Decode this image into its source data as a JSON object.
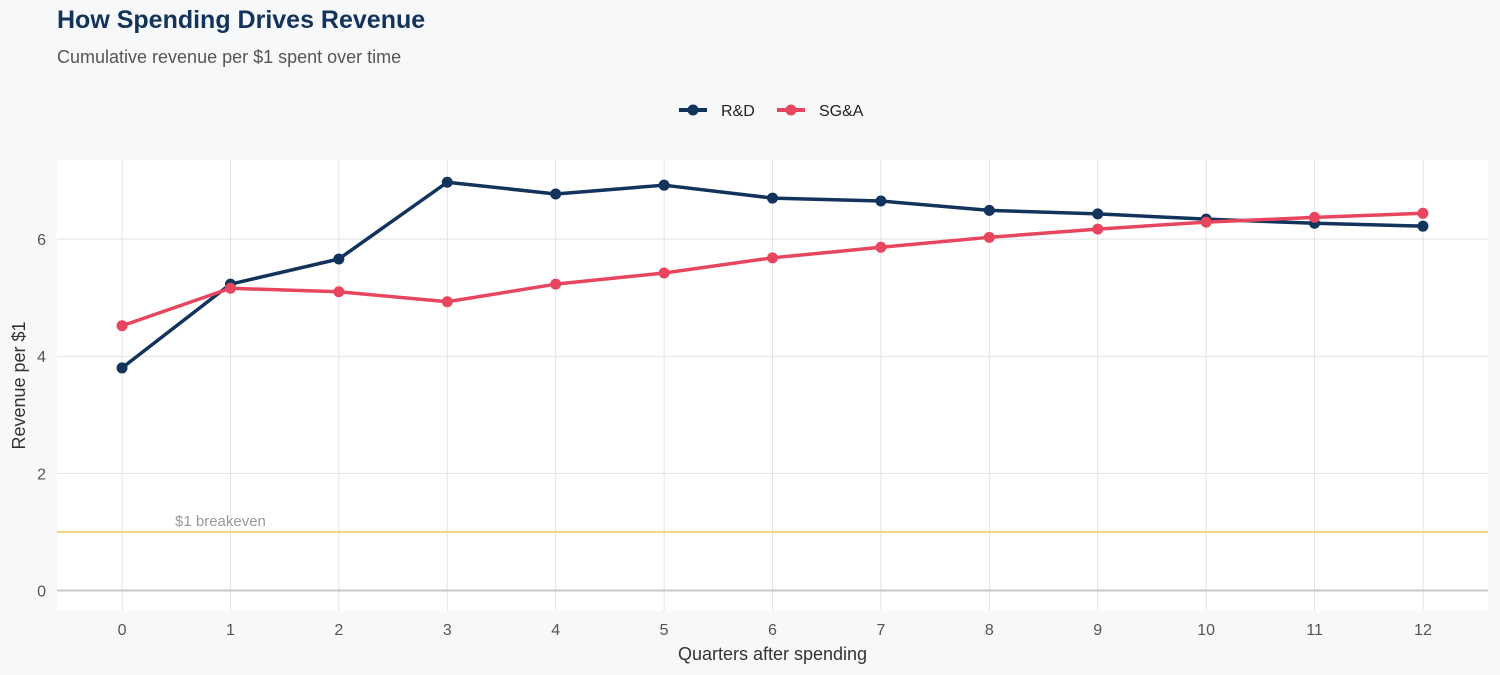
{
  "title": "How Spending Drives Revenue",
  "subtitle": "Cumulative revenue per $1 spent over time",
  "chart_data": {
    "type": "line",
    "title": "How Spending Drives Revenue",
    "subtitle": "Cumulative revenue per $1 spent over time",
    "xlabel": "Quarters after spending",
    "ylabel": "Revenue per $1",
    "x": [
      0,
      1,
      2,
      3,
      4,
      5,
      6,
      7,
      8,
      9,
      10,
      11,
      12
    ],
    "xlim": [
      -0.6,
      12.6
    ],
    "ylim": [
      -0.35,
      7.35
    ],
    "yticks": [
      0,
      2,
      4,
      6
    ],
    "grid": true,
    "legend_position": "top",
    "series": [
      {
        "name": "R&D",
        "color": "#12335c",
        "values": [
          3.8,
          5.23,
          5.66,
          6.97,
          6.77,
          6.92,
          6.7,
          6.65,
          6.49,
          6.43,
          6.34,
          6.27,
          6.22
        ]
      },
      {
        "name": "SG&A",
        "color": "#e8455f",
        "values": [
          4.52,
          5.16,
          5.1,
          4.93,
          5.23,
          5.42,
          5.68,
          5.86,
          6.03,
          6.17,
          6.29,
          6.37,
          6.44
        ]
      }
    ],
    "annotations": [
      {
        "type": "hline",
        "y": 1,
        "label": "$1 breakeven",
        "color": "#fcd27a"
      }
    ]
  }
}
